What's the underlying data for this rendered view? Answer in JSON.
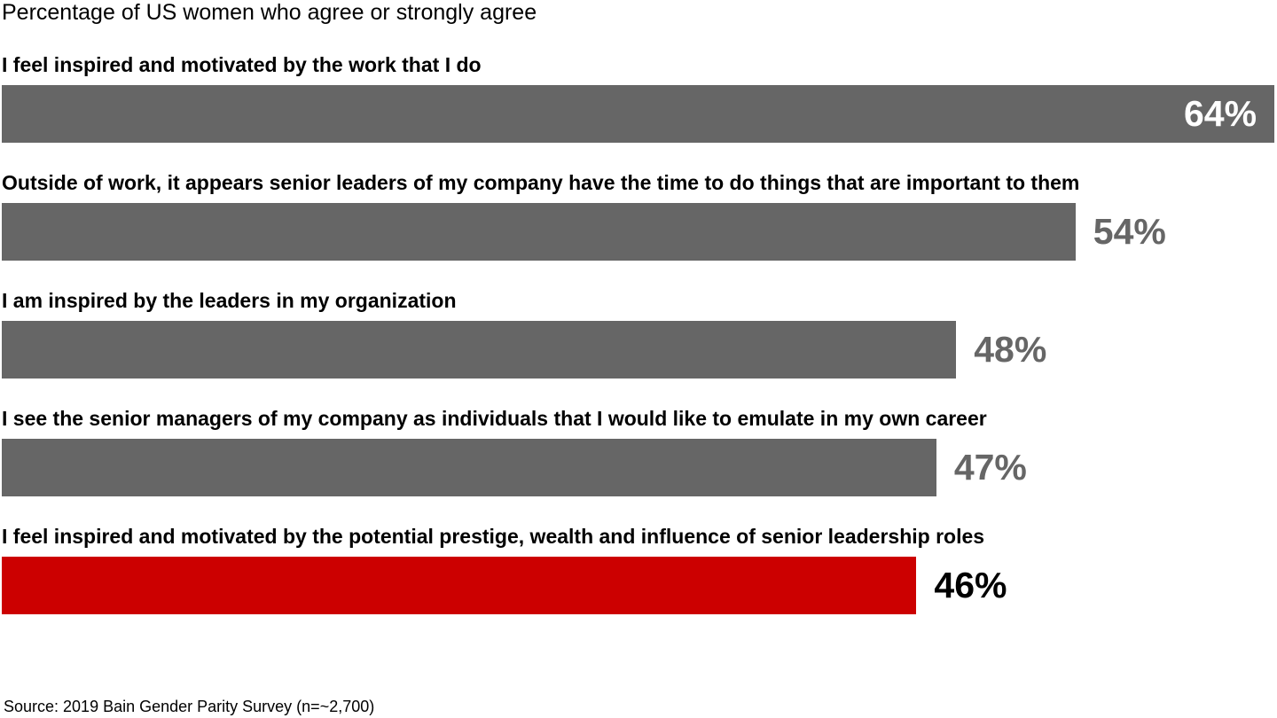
{
  "chart_data": {
    "type": "bar",
    "orientation": "horizontal",
    "subtitle": "Percentage of US women who agree or strongly agree",
    "categories": [
      "I feel inspired and motivated by the work that I do",
      "Outside of work, it appears senior leaders of my company have the time to do things that are important to them",
      "I am inspired by the leaders in my organization",
      "I see the senior managers of my company as individuals that I would like to emulate in my own career",
      "I feel inspired and motivated by the potential prestige, wealth and influence of senior leadership roles"
    ],
    "values": [
      64,
      54,
      48,
      47,
      46
    ],
    "value_labels": [
      "64%",
      "54%",
      "48%",
      "47%",
      "46%"
    ],
    "highlight_index": 4,
    "bar_colors": [
      "#666666",
      "#666666",
      "#666666",
      "#666666",
      "#cc0000"
    ],
    "value_label_colors": [
      "#ffffff",
      "#666666",
      "#666666",
      "#666666",
      "#000000"
    ],
    "value_label_inside": [
      true,
      false,
      false,
      false,
      false
    ],
    "xlim": [
      0,
      64
    ],
    "grid": false,
    "legend": "none"
  },
  "footer": {
    "source": "Source: 2019 Bain Gender Parity Survey (n=~2,700)"
  }
}
